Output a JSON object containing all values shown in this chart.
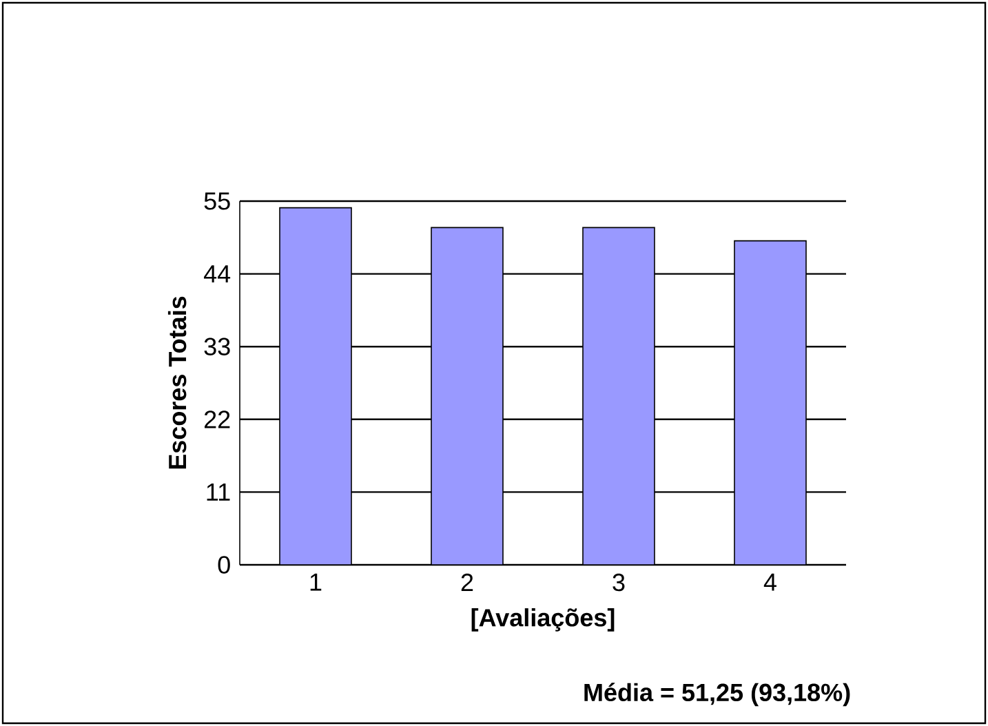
{
  "chart_data": {
    "type": "bar",
    "xlabel": "[Avaliações]",
    "ylabel": "Escores Totais",
    "categories": [
      "1",
      "2",
      "3",
      "4"
    ],
    "values": [
      54,
      51,
      51,
      49
    ],
    "color": "#9999ff",
    "ylim": [
      0,
      55
    ],
    "yticks": [
      0,
      11,
      22,
      33,
      44,
      55
    ],
    "grid": "y",
    "annotations": [
      "Média = 51,25 (93,18%)"
    ]
  }
}
